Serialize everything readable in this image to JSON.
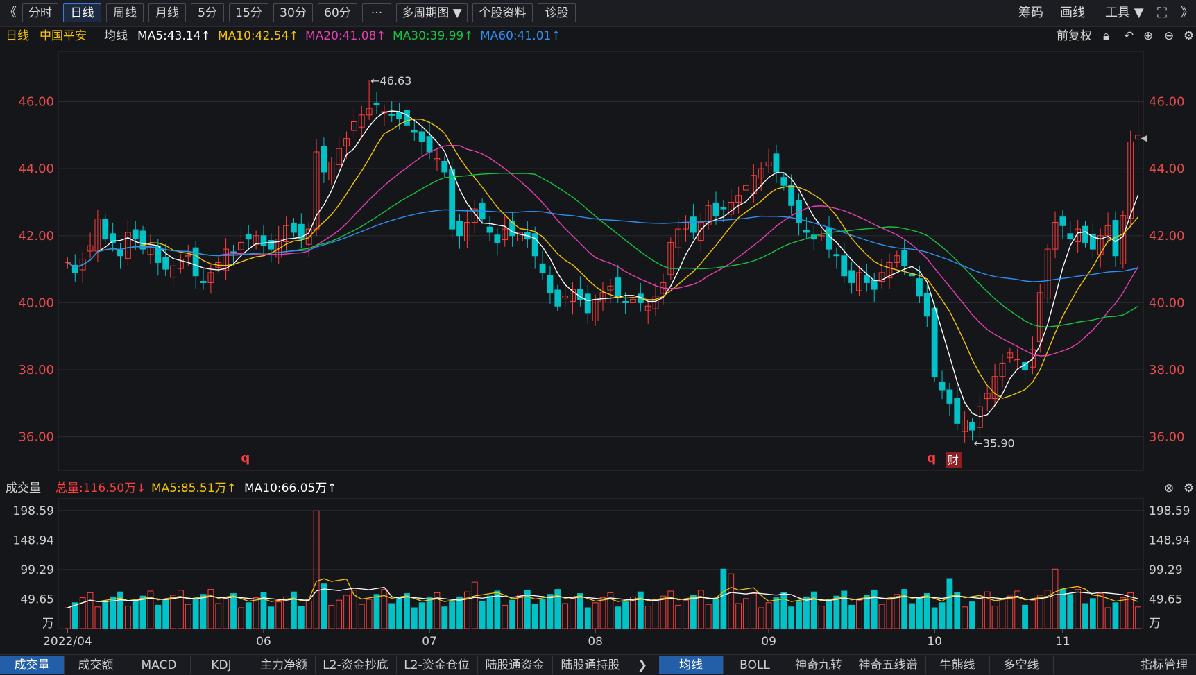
{
  "toolbar": {
    "back": "《",
    "tabs": [
      "分时",
      "日线",
      "周线",
      "月线",
      "5分",
      "15分",
      "30分",
      "60分",
      "···",
      "多周期图 ▼",
      "个股资料",
      "诊股"
    ],
    "active_tab": "日线",
    "right": [
      "筹码",
      "画线",
      "工具 ▼"
    ]
  },
  "info": {
    "period": "日线",
    "stock": "中国平安",
    "ma_label": "均线",
    "ma5": "MA5:43.14↑",
    "ma10": "MA10:42.54↑",
    "ma20": "MA20:41.08↑",
    "ma30": "MA30:39.99↑",
    "ma60": "MA60:41.01↑",
    "adjust": "前复权"
  },
  "volume_info": {
    "label": "成交量",
    "total": "总量:116.50万↓",
    "ma5": "MA5:85.51万↑",
    "ma10": "MA10:66.05万↑"
  },
  "colors": {
    "up": "#ff3d3d",
    "down": "#00c2c7",
    "ma5": "#ffffff",
    "ma10": "#f5c400",
    "ma20": "#e83fb3",
    "ma30": "#16c240",
    "ma60": "#2d8ff0",
    "axis_text": "#e84b4b"
  },
  "chart_data": {
    "type": "candlestick",
    "price_axis_ticks": [
      "46.00",
      "44.00",
      "42.00",
      "40.00",
      "38.00",
      "36.00"
    ],
    "price_range": [
      35.0,
      47.5
    ],
    "volume_axis_ticks": [
      "198.59",
      "148.94",
      "99.29",
      "49.65",
      "万"
    ],
    "volume_range": [
      0,
      210
    ],
    "x_labels": [
      "2022/04",
      "06",
      "07",
      "08",
      "09",
      "10",
      "11"
    ],
    "annotations": {
      "high": "←46.63",
      "low": "←35.90",
      "marker_q": "q",
      "marker_cai": "财"
    },
    "closes": [
      41.2,
      40.9,
      41.3,
      41.7,
      42.5,
      41.9,
      41.8,
      41.4,
      42.1,
      41.9,
      41.6,
      41.7,
      41.2,
      41.0,
      41.1,
      41.3,
      41.4,
      40.8,
      40.6,
      40.9,
      41.2,
      41.6,
      41.5,
      41.8,
      41.9,
      42.0,
      41.7,
      41.6,
      41.9,
      42.3,
      42.1,
      41.9,
      42.2,
      44.5,
      43.9,
      44.2,
      44.6,
      44.9,
      45.4,
      45.6,
      45.8,
      45.9,
      45.7,
      45.6,
      45.5,
      45.3,
      45.1,
      44.8,
      44.5,
      44.3,
      43.9,
      42.2,
      42.0,
      42.4,
      42.8,
      42.5,
      42.1,
      41.8,
      42.2,
      42.0,
      42.1,
      41.9,
      41.4,
      40.9,
      40.3,
      39.9,
      40.2,
      40.4,
      40.1,
      39.7,
      40.1,
      40.3,
      40.5,
      40.2,
      40.0,
      40.1,
      40.0,
      39.9,
      40.2,
      40.6,
      41.8,
      42.2,
      42.4,
      42.1,
      42.4,
      42.9,
      42.6,
      42.8,
      43.0,
      43.2,
      43.5,
      43.8,
      44.0,
      44.2,
      43.9,
      43.5,
      42.9,
      42.4,
      42.1,
      41.9,
      42.0,
      41.6,
      41.4,
      40.8,
      40.6,
      40.9,
      40.6,
      40.4,
      40.9,
      41.2,
      41.4,
      41.1,
      40.8,
      40.2,
      39.6,
      37.8,
      37.4,
      37.0,
      36.4,
      36.5,
      36.2,
      36.9,
      37.3,
      37.8,
      38.2,
      38.5,
      38.3,
      38.0,
      38.6,
      40.3,
      41.6,
      42.4,
      42.3,
      41.9,
      42.2,
      41.8,
      41.6,
      42.0,
      42.3,
      41.4,
      42.6,
      44.8,
      45.0
    ]
  }
}
